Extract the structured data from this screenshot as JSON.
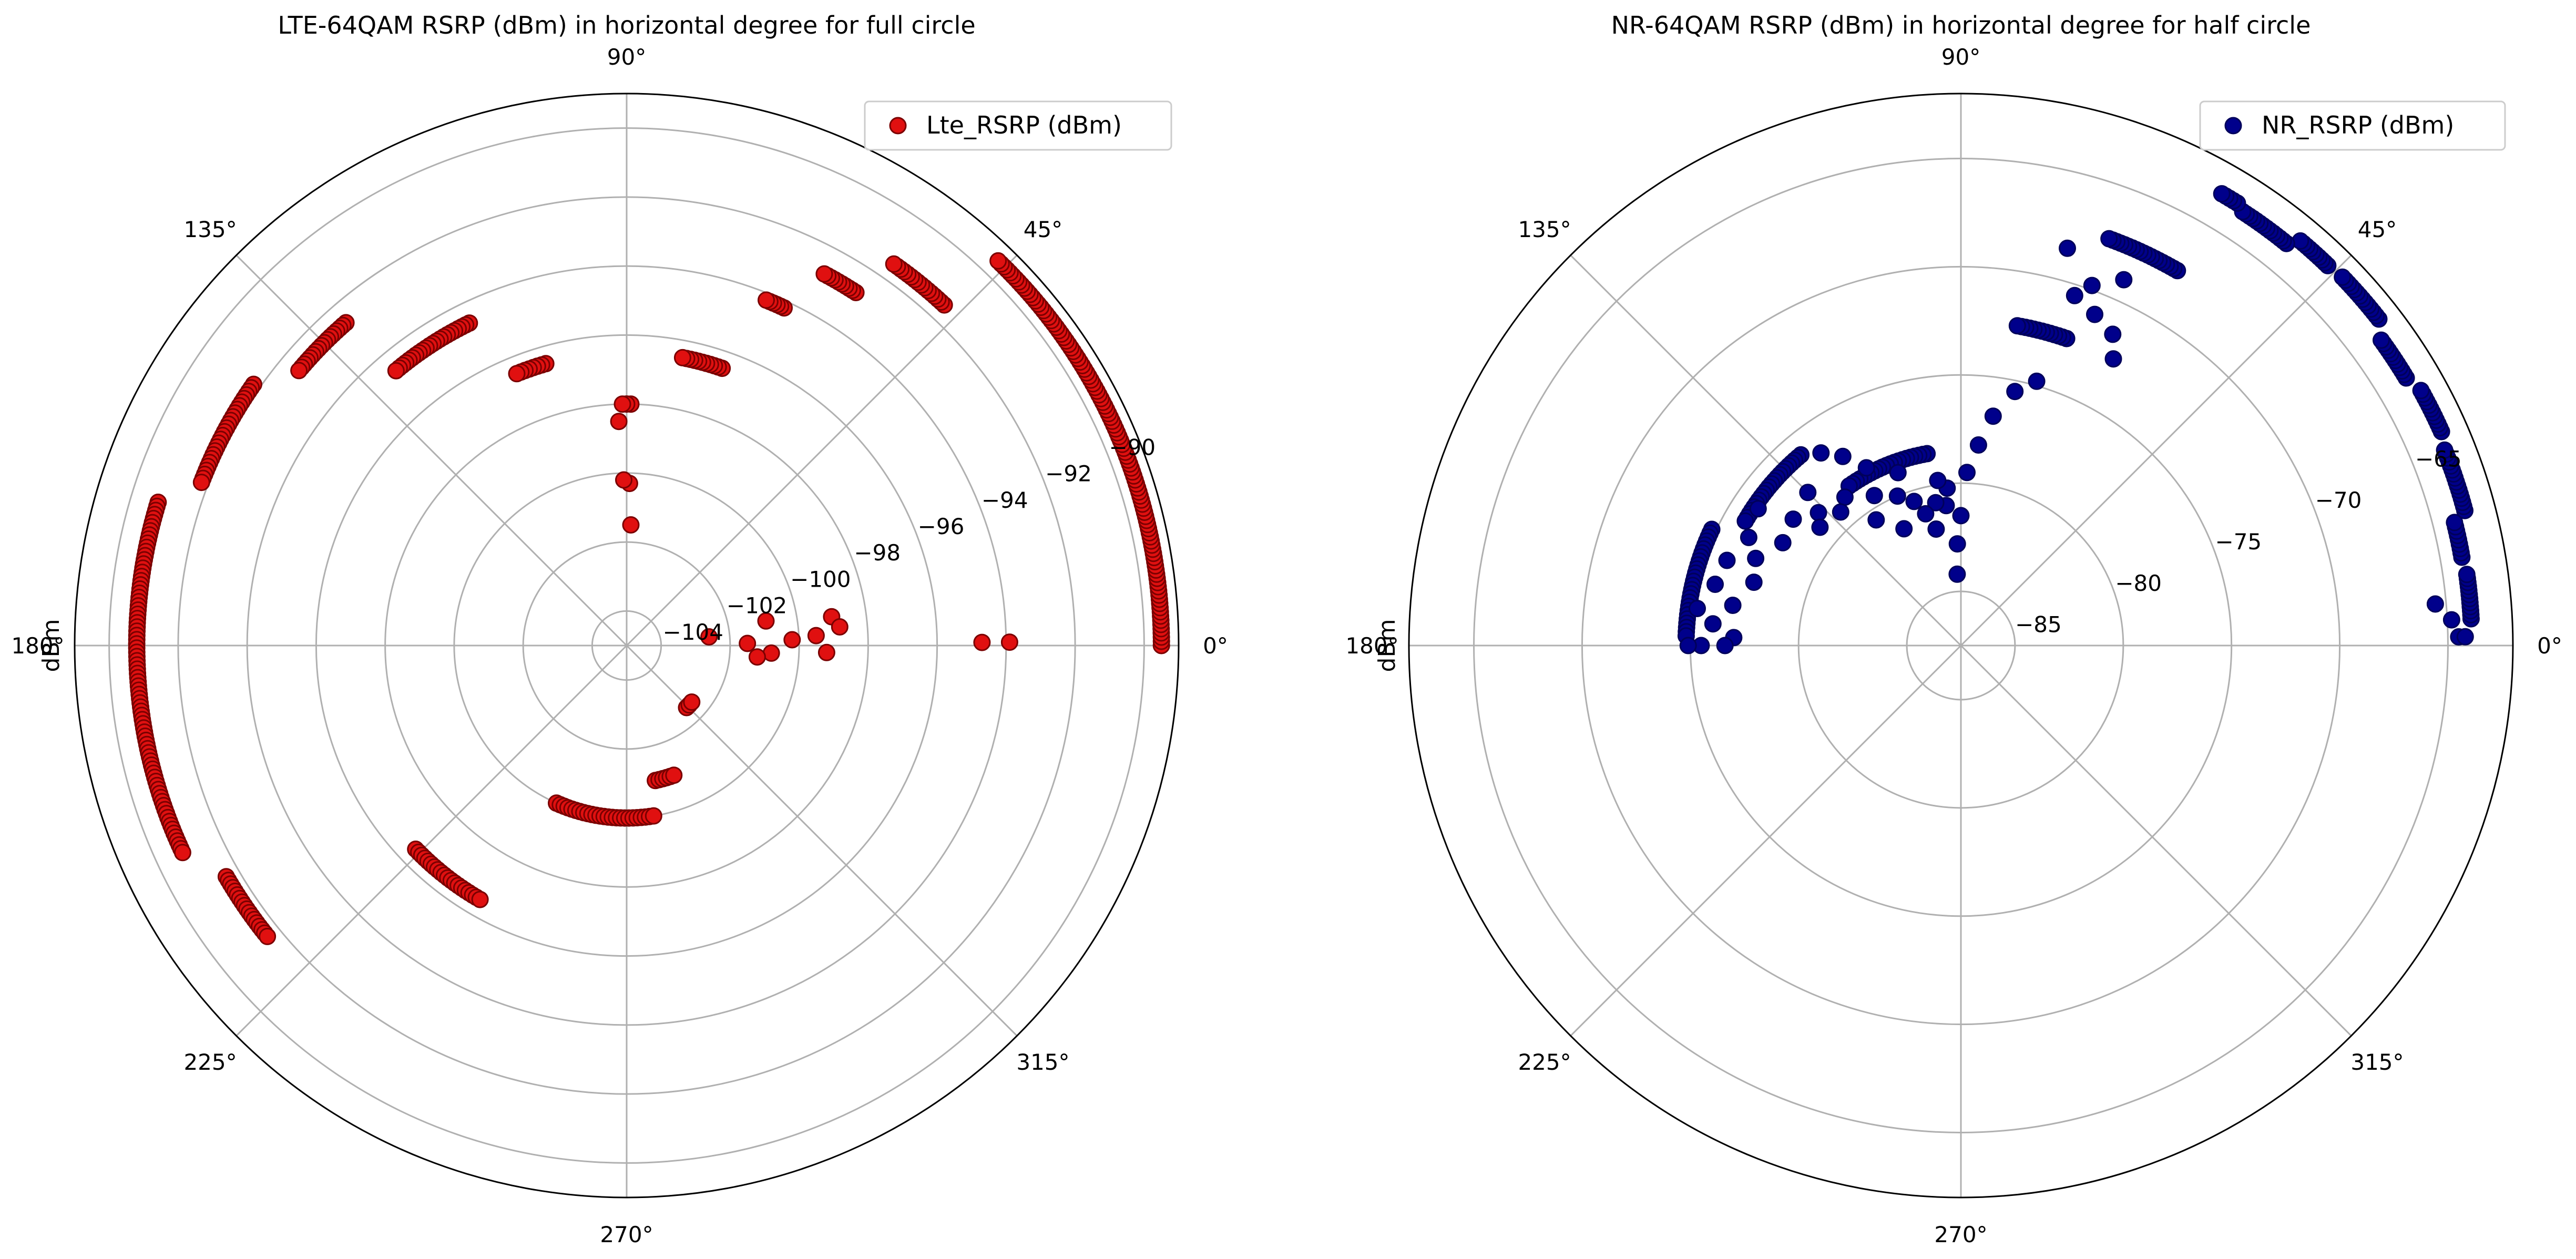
{
  "chart_data": [
    {
      "type": "scatter",
      "projection": "polar",
      "title": "LTE-64QAM RSRP (dBm) in horizontal degree for full circle",
      "ylabel": "dBm",
      "angle_ticks": [
        "0°",
        "45°",
        "90°",
        "135°",
        "180°",
        "225°",
        "270°",
        "315°"
      ],
      "radial_ticks": [
        -104,
        -102,
        -100,
        -98,
        -96,
        -94,
        -92,
        -90
      ],
      "radial_tick_labels": [
        "−104",
        "−102",
        "−100",
        "−98",
        "−96",
        "−94",
        "−92",
        "−90"
      ],
      "rlim": [
        -105,
        -89
      ],
      "grid": true,
      "legend_position": "upper-right",
      "series": [
        {
          "name": "Lte_RSRP (dBm)",
          "color": "#e01010",
          "edge_color": "#7a0000",
          "arcs": [
            {
              "theta": [
                0,
                46
              ],
              "r": -89.5
            },
            {
              "theta": [
                47,
                55
              ],
              "r": -91.5
            },
            {
              "theta": [
                57,
                62
              ],
              "r": -92.8
            },
            {
              "theta": [
                65,
                68
              ],
              "r": -94.2
            },
            {
              "theta": [
                71,
                79
              ],
              "r": -96.5
            },
            {
              "theta": [
                89,
                91
              ],
              "r": -98.0
            },
            {
              "theta": [
                106,
                112
              ],
              "r": -96.5
            },
            {
              "theta": [
                116,
                130
              ],
              "r": -94.6
            },
            {
              "theta": [
                131,
                140
              ],
              "r": -92.6
            },
            {
              "theta": [
                145,
                159
              ],
              "r": -91.8
            },
            {
              "theta": [
                163,
                205
              ],
              "r": -90.8
            },
            {
              "theta": [
                210,
                219
              ],
              "r": -91.6
            },
            {
              "theta": [
                224,
                240
              ],
              "r": -96.5
            },
            {
              "theta": [
                246,
                279
              ],
              "r": -100.0
            },
            {
              "theta": [
                282,
                290
              ],
              "r": -101.0
            },
            {
              "theta": [
                314,
                319
              ],
              "r": -102.5
            }
          ],
          "points": [
            {
              "theta": 0.5,
              "r": -93.9
            },
            {
              "theta": 0.5,
              "r": -94.7
            },
            {
              "theta": 1,
              "r": -101.5
            },
            {
              "theta": 2,
              "r": -100.2
            },
            {
              "theta": 3,
              "r": -99.5
            },
            {
              "theta": 358,
              "r": -99.2
            },
            {
              "theta": 357,
              "r": -100.8
            },
            {
              "theta": 355,
              "r": -101.2
            },
            {
              "theta": 8,
              "r": -99.0
            },
            {
              "theta": 5,
              "r": -98.8
            },
            {
              "theta": 10,
              "r": -100.9
            },
            {
              "theta": 6,
              "r": -102.6
            },
            {
              "theta": 89,
              "r": -100.3
            },
            {
              "theta": 91,
              "r": -100.2
            },
            {
              "theta": 88,
              "r": -101.5
            },
            {
              "theta": 92,
              "r": -98.5
            }
          ]
        }
      ]
    },
    {
      "type": "scatter",
      "projection": "polar",
      "title": "NR-64QAM RSRP (dBm) in horizontal degree for half circle",
      "ylabel": "dBm",
      "angle_ticks": [
        "0°",
        "45°",
        "90°",
        "135°",
        "180°",
        "225°",
        "270°",
        "315°"
      ],
      "radial_ticks": [
        -85,
        -80,
        -75,
        -70,
        -65
      ],
      "radial_tick_labels": [
        "−85",
        "−80",
        "−75",
        "−70",
        "−65"
      ],
      "rlim": [
        -87.5,
        -62
      ],
      "grid": true,
      "legend_position": "upper-right",
      "series": [
        {
          "name": "NR_RSRP (dBm)",
          "color": "#00008b",
          "edge_color": "#00005a",
          "arcs": [
            {
              "theta": [
                3,
                8
              ],
              "r": -63.9
            },
            {
              "theta": [
                10,
                14
              ],
              "r": -64.0
            },
            {
              "theta": [
                15,
                22
              ],
              "r": -63.4
            },
            {
              "theta": [
                24,
                29
              ],
              "r": -63.2
            },
            {
              "theta": [
                31,
                36
              ],
              "r": -63.5
            },
            {
              "theta": [
                38,
                44
              ],
              "r": -63.0
            },
            {
              "theta": [
                46,
                50
              ],
              "r": -63.1
            },
            {
              "theta": [
                51,
                57
              ],
              "r": -63.6
            },
            {
              "theta": [
                58,
                60
              ],
              "r": -63.4
            },
            {
              "theta": [
                60,
                70
              ],
              "r": -67.5
            },
            {
              "theta": [
                71,
                80
              ],
              "r": -72.5
            },
            {
              "theta": [
                100,
                125
              ],
              "r": -78.5
            },
            {
              "theta": [
                130,
                150
              ],
              "r": -76.0
            },
            {
              "theta": [
                155,
                178
              ],
              "r": -74.8
            }
          ],
          "points": [
            {
              "theta": 1,
              "r": -64.5
            },
            {
              "theta": 3,
              "r": -64.8
            },
            {
              "theta": 5,
              "r": -65.5
            },
            {
              "theta": 1,
              "r": -64.2
            },
            {
              "theta": 64,
              "r": -71.5
            },
            {
              "theta": 62,
              "r": -72.5
            },
            {
              "theta": 68,
              "r": -71.0
            },
            {
              "theta": 70,
              "r": -69.8
            },
            {
              "theta": 66,
              "r": -69.0
            },
            {
              "theta": 72,
              "r": -70.5
            },
            {
              "theta": 75,
              "r": -68.5
            },
            {
              "theta": 74,
              "r": -74.8
            },
            {
              "theta": 78,
              "r": -75.5
            },
            {
              "theta": 82,
              "r": -76.8
            },
            {
              "theta": 85,
              "r": -78.2
            },
            {
              "theta": 88,
              "r": -79.5
            },
            {
              "theta": 90,
              "r": -81.5
            },
            {
              "theta": 92,
              "r": -82.8
            },
            {
              "theta": 93,
              "r": -84.2
            },
            {
              "theta": 95,
              "r": -80.2
            },
            {
              "theta": 96,
              "r": -81.0
            },
            {
              "theta": 98,
              "r": -79.8
            },
            {
              "theta": 100,
              "r": -80.8
            },
            {
              "theta": 102,
              "r": -82.0
            },
            {
              "theta": 105,
              "r": -81.2
            },
            {
              "theta": 108,
              "r": -80.5
            },
            {
              "theta": 110,
              "r": -79.0
            },
            {
              "theta": 113,
              "r": -80.0
            },
            {
              "theta": 116,
              "r": -81.5
            },
            {
              "theta": 118,
              "r": -78.2
            },
            {
              "theta": 120,
              "r": -79.5
            },
            {
              "theta": 122,
              "r": -77.2
            },
            {
              "theta": 124,
              "r": -80.5
            },
            {
              "theta": 126,
              "r": -76.5
            },
            {
              "theta": 128,
              "r": -78.8
            },
            {
              "theta": 132,
              "r": -79.2
            },
            {
              "theta": 135,
              "r": -77.5
            },
            {
              "theta": 137,
              "r": -78.5
            },
            {
              "theta": 140,
              "r": -79.0
            },
            {
              "theta": 143,
              "r": -77.8
            },
            {
              "theta": 146,
              "r": -76.2
            },
            {
              "theta": 150,
              "r": -78.0
            },
            {
              "theta": 153,
              "r": -76.5
            },
            {
              "theta": 157,
              "r": -77.2
            },
            {
              "theta": 160,
              "r": -76.0
            },
            {
              "theta": 163,
              "r": -77.5
            },
            {
              "theta": 166,
              "r": -75.8
            },
            {
              "theta": 170,
              "r": -76.8
            },
            {
              "theta": 172,
              "r": -75.2
            },
            {
              "theta": 175,
              "r": -76.0
            },
            {
              "theta": 178,
              "r": -77.0
            },
            {
              "theta": 180,
              "r": -75.5
            },
            {
              "theta": 180,
              "r": -76.6
            },
            {
              "theta": 180,
              "r": -74.9
            }
          ]
        }
      ]
    }
  ]
}
